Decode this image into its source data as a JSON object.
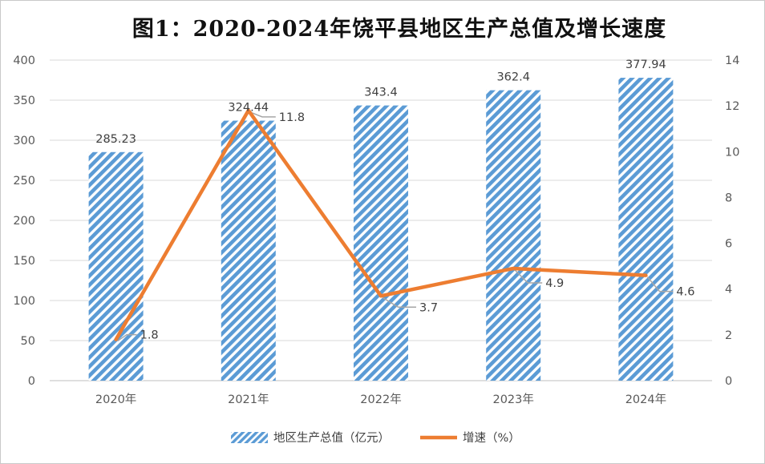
{
  "chart_data": {
    "type": "bar+line",
    "title": "图1：2020-2024年饶平县地区生产总值及增长速度",
    "categories": [
      "2020年",
      "2021年",
      "2022年",
      "2023年",
      "2024年"
    ],
    "series": [
      {
        "name": "地区生产总值（亿元）",
        "type": "bar",
        "axis": "left",
        "values": [
          285.23,
          324.44,
          343.4,
          362.4,
          377.94
        ],
        "labels": [
          "285.23",
          "324.44",
          "343.4",
          "362.4",
          "377.94"
        ],
        "color": "#5b9bd5"
      },
      {
        "name": "增速（%）",
        "type": "line",
        "axis": "right",
        "values": [
          1.8,
          11.8,
          3.7,
          4.9,
          4.6
        ],
        "labels": [
          "1.8",
          "11.8",
          "3.7",
          "4.9",
          "4.6"
        ],
        "color": "#ed7d31"
      }
    ],
    "y_left": {
      "min": 0,
      "max": 400,
      "step": 50,
      "ticks": [
        "0",
        "50",
        "100",
        "150",
        "200",
        "250",
        "300",
        "350",
        "400"
      ]
    },
    "y_right": {
      "min": 0,
      "max": 14,
      "step": 2,
      "ticks": [
        "0",
        "2",
        "4",
        "6",
        "8",
        "10",
        "12",
        "14"
      ]
    },
    "grid": true,
    "legend_position": "bottom-center"
  }
}
